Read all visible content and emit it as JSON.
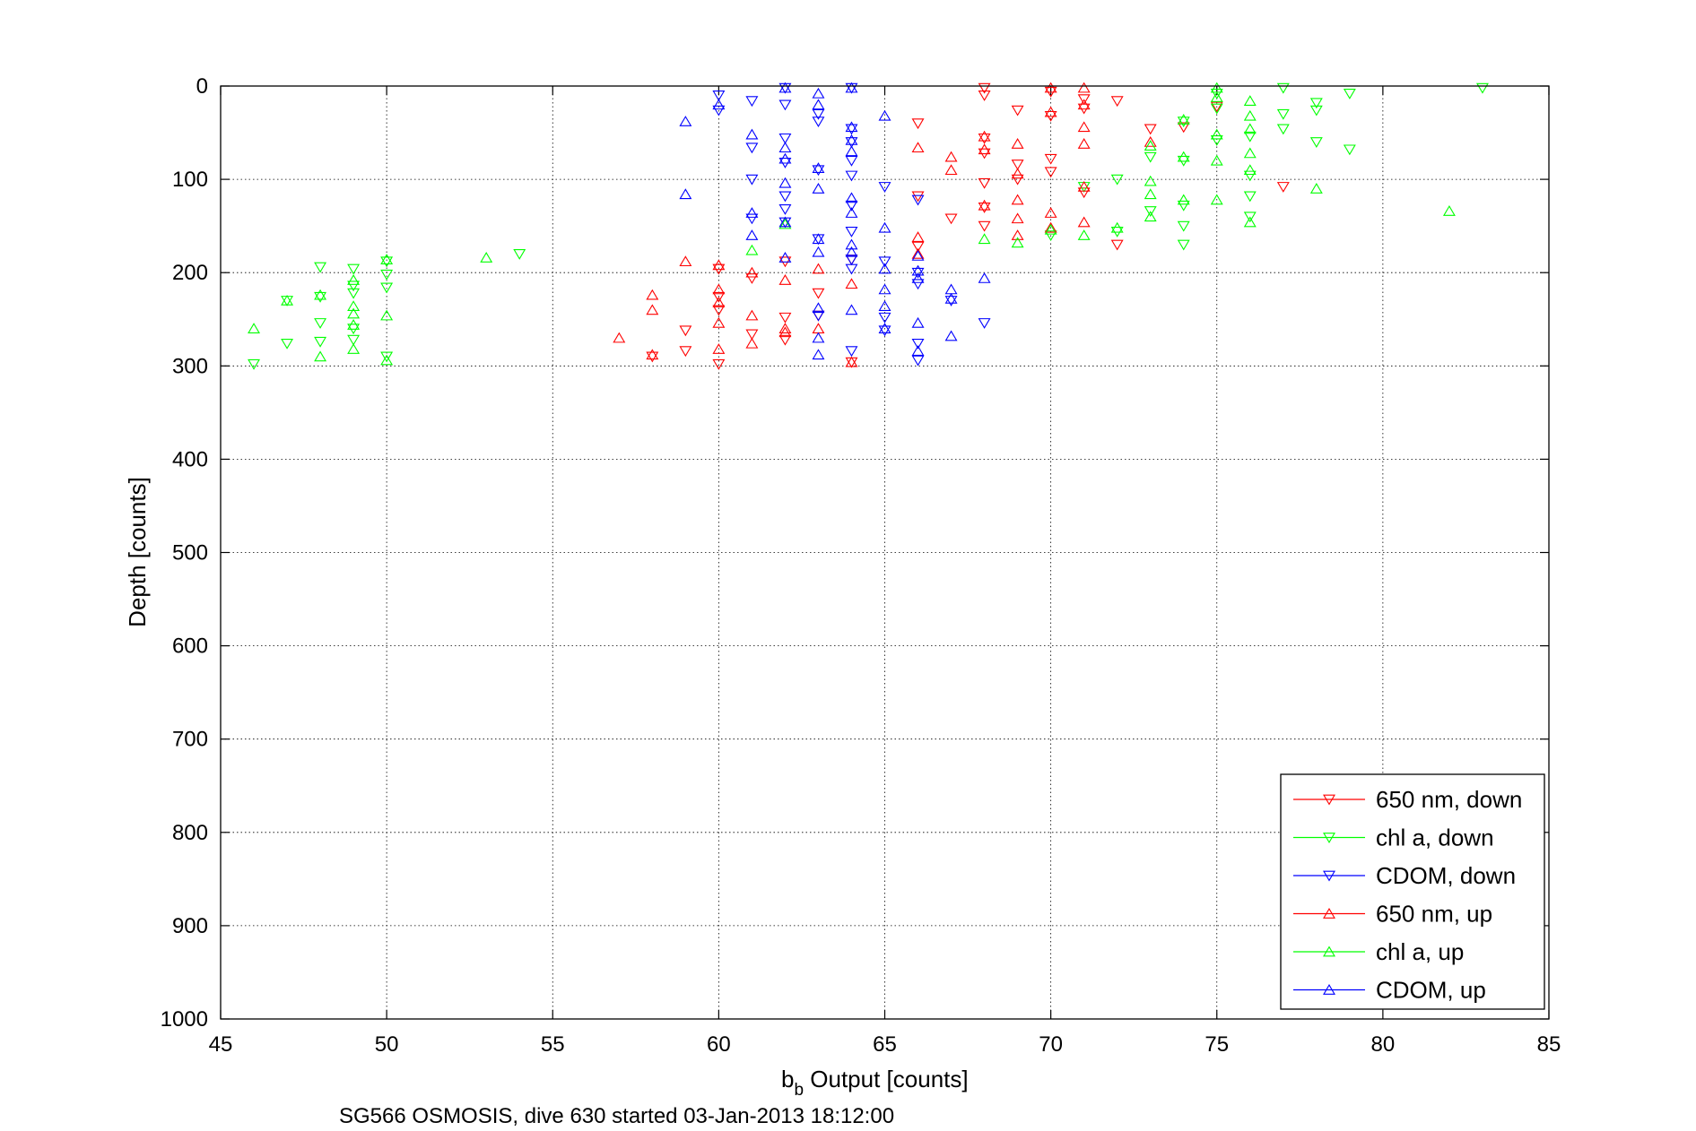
{
  "chart_data": {
    "type": "scatter",
    "title": "",
    "xlabel_main": "b",
    "xlabel_sub": "b",
    "xlabel_rest": " Output [counts]",
    "ylabel": "Depth [counts]",
    "caption": "SG566 OSMOSIS, dive 630 started 03-Jan-2013 18:12:00",
    "xlim": [
      45,
      85
    ],
    "ylim": [
      0,
      1000
    ],
    "y_reversed": true,
    "grid": true,
    "legend_position": "bottom-right",
    "x_ticks": [
      "45",
      "50",
      "55",
      "60",
      "65",
      "70",
      "75",
      "80",
      "85"
    ],
    "y_ticks": [
      "0",
      "100",
      "200",
      "300",
      "400",
      "500",
      "600",
      "700",
      "800",
      "900",
      "1000"
    ],
    "x_tick_values": [
      45,
      50,
      55,
      60,
      65,
      70,
      75,
      80,
      85
    ],
    "y_tick_values": [
      0,
      100,
      200,
      300,
      400,
      500,
      600,
      700,
      800,
      900,
      1000
    ],
    "series": [
      {
        "name": "650 nm, down",
        "color": "#ff0000",
        "marker": "triangle-down",
        "points": [
          [
            58,
            290
          ],
          [
            59,
            262
          ],
          [
            59,
            284
          ],
          [
            60,
            298
          ],
          [
            60,
            240
          ],
          [
            60,
            226
          ],
          [
            60,
            196
          ],
          [
            61,
            206
          ],
          [
            61,
            266
          ],
          [
            62,
            188
          ],
          [
            62,
            248
          ],
          [
            62,
            272
          ],
          [
            63,
            222
          ],
          [
            63,
            246
          ],
          [
            64,
            296
          ],
          [
            64,
            186
          ],
          [
            66,
            40
          ],
          [
            66,
            172
          ],
          [
            66,
            118
          ],
          [
            67,
            142
          ],
          [
            68,
            2
          ],
          [
            68,
            10
          ],
          [
            68,
            56
          ],
          [
            68,
            72
          ],
          [
            68,
            104
          ],
          [
            68,
            130
          ],
          [
            68,
            150
          ],
          [
            69,
            26
          ],
          [
            69,
            84
          ],
          [
            69,
            100
          ],
          [
            70,
            6
          ],
          [
            70,
            32
          ],
          [
            70,
            78
          ],
          [
            70,
            92
          ],
          [
            71,
            14
          ],
          [
            71,
            24
          ],
          [
            71,
            114
          ],
          [
            72,
            16
          ],
          [
            72,
            170
          ],
          [
            73,
            46
          ],
          [
            74,
            44
          ],
          [
            75,
            22
          ],
          [
            77,
            108
          ]
        ]
      },
      {
        "name": "chl a, down",
        "color": "#00ff00",
        "marker": "triangle-down",
        "points": [
          [
            46,
            298
          ],
          [
            47,
            230
          ],
          [
            47,
            276
          ],
          [
            48,
            194
          ],
          [
            48,
            226
          ],
          [
            48,
            254
          ],
          [
            48,
            274
          ],
          [
            49,
            196
          ],
          [
            49,
            214
          ],
          [
            49,
            222
          ],
          [
            49,
            260
          ],
          [
            49,
            272
          ],
          [
            50,
            188
          ],
          [
            50,
            202
          ],
          [
            50,
            216
          ],
          [
            50,
            290
          ],
          [
            54,
            180
          ],
          [
            70,
            160
          ],
          [
            71,
            108
          ],
          [
            72,
            100
          ],
          [
            72,
            156
          ],
          [
            73,
            76
          ],
          [
            73,
            134
          ],
          [
            74,
            38
          ],
          [
            74,
            80
          ],
          [
            74,
            128
          ],
          [
            74,
            150
          ],
          [
            74,
            170
          ],
          [
            75,
            8
          ],
          [
            75,
            24
          ],
          [
            75,
            58
          ],
          [
            76,
            54
          ],
          [
            76,
            96
          ],
          [
            76,
            118
          ],
          [
            76,
            140
          ],
          [
            77,
            2
          ],
          [
            77,
            30
          ],
          [
            77,
            46
          ],
          [
            78,
            18
          ],
          [
            78,
            26
          ],
          [
            78,
            60
          ],
          [
            79,
            8
          ],
          [
            79,
            68
          ],
          [
            83,
            2
          ]
        ]
      },
      {
        "name": "CDOM, down",
        "color": "#0000ff",
        "marker": "triangle-down",
        "points": [
          [
            60,
            10
          ],
          [
            60,
            26
          ],
          [
            61,
            16
          ],
          [
            61,
            66
          ],
          [
            61,
            100
          ],
          [
            61,
            142
          ],
          [
            62,
            2
          ],
          [
            62,
            20
          ],
          [
            62,
            56
          ],
          [
            62,
            82
          ],
          [
            62,
            118
          ],
          [
            62,
            132
          ],
          [
            62,
            146
          ],
          [
            63,
            30
          ],
          [
            63,
            38
          ],
          [
            63,
            90
          ],
          [
            63,
            164
          ],
          [
            63,
            246
          ],
          [
            64,
            2
          ],
          [
            64,
            46
          ],
          [
            64,
            60
          ],
          [
            64,
            80
          ],
          [
            64,
            96
          ],
          [
            64,
            128
          ],
          [
            64,
            156
          ],
          [
            64,
            186
          ],
          [
            64,
            196
          ],
          [
            64,
            284
          ],
          [
            65,
            108
          ],
          [
            65,
            188
          ],
          [
            65,
            248
          ],
          [
            65,
            262
          ],
          [
            66,
            122
          ],
          [
            66,
            200
          ],
          [
            66,
            212
          ],
          [
            66,
            276
          ],
          [
            66,
            294
          ],
          [
            67,
            230
          ],
          [
            68,
            254
          ]
        ]
      },
      {
        "name": "650 nm, up",
        "color": "#ff0000",
        "marker": "triangle-up",
        "points": [
          [
            57,
            270
          ],
          [
            58,
            224
          ],
          [
            58,
            240
          ],
          [
            58,
            288
          ],
          [
            59,
            188
          ],
          [
            60,
            192
          ],
          [
            60,
            218
          ],
          [
            60,
            232
          ],
          [
            60,
            254
          ],
          [
            60,
            282
          ],
          [
            61,
            200
          ],
          [
            61,
            246
          ],
          [
            61,
            276
          ],
          [
            62,
            260
          ],
          [
            62,
            264
          ],
          [
            62,
            208
          ],
          [
            63,
            196
          ],
          [
            63,
            260
          ],
          [
            64,
            212
          ],
          [
            64,
            296
          ],
          [
            66,
            66
          ],
          [
            66,
            162
          ],
          [
            66,
            180
          ],
          [
            67,
            76
          ],
          [
            67,
            90
          ],
          [
            68,
            54
          ],
          [
            68,
            68
          ],
          [
            68,
            128
          ],
          [
            69,
            62
          ],
          [
            69,
            94
          ],
          [
            69,
            122
          ],
          [
            69,
            142
          ],
          [
            69,
            160
          ],
          [
            70,
            2
          ],
          [
            70,
            28
          ],
          [
            70,
            136
          ],
          [
            70,
            152
          ],
          [
            71,
            2
          ],
          [
            71,
            20
          ],
          [
            71,
            44
          ],
          [
            71,
            62
          ],
          [
            71,
            108
          ],
          [
            71,
            146
          ],
          [
            73,
            60
          ]
        ]
      },
      {
        "name": "chl a, up",
        "color": "#00ff00",
        "marker": "triangle-up",
        "points": [
          [
            46,
            260
          ],
          [
            47,
            230
          ],
          [
            48,
            224
          ],
          [
            48,
            290
          ],
          [
            49,
            236
          ],
          [
            49,
            244
          ],
          [
            49,
            256
          ],
          [
            49,
            282
          ],
          [
            49,
            208
          ],
          [
            50,
            186
          ],
          [
            50,
            246
          ],
          [
            50,
            294
          ],
          [
            53,
            184
          ],
          [
            61,
            176
          ],
          [
            62,
            148
          ],
          [
            68,
            164
          ],
          [
            69,
            168
          ],
          [
            70,
            154
          ],
          [
            71,
            160
          ],
          [
            72,
            152
          ],
          [
            73,
            64
          ],
          [
            73,
            102
          ],
          [
            73,
            116
          ],
          [
            73,
            140
          ],
          [
            74,
            36
          ],
          [
            74,
            76
          ],
          [
            74,
            122
          ],
          [
            75,
            2
          ],
          [
            75,
            12
          ],
          [
            75,
            52
          ],
          [
            75,
            80
          ],
          [
            75,
            122
          ],
          [
            76,
            16
          ],
          [
            76,
            32
          ],
          [
            76,
            46
          ],
          [
            76,
            72
          ],
          [
            76,
            90
          ],
          [
            76,
            146
          ],
          [
            78,
            110
          ],
          [
            82,
            134
          ]
        ]
      },
      {
        "name": "CDOM, up",
        "color": "#0000ff",
        "marker": "triangle-up",
        "points": [
          [
            59,
            38
          ],
          [
            59,
            116
          ],
          [
            60,
            20
          ],
          [
            61,
            52
          ],
          [
            61,
            136
          ],
          [
            61,
            160
          ],
          [
            62,
            2
          ],
          [
            62,
            66
          ],
          [
            62,
            78
          ],
          [
            62,
            104
          ],
          [
            62,
            146
          ],
          [
            62,
            184
          ],
          [
            63,
            8
          ],
          [
            63,
            20
          ],
          [
            63,
            88
          ],
          [
            63,
            110
          ],
          [
            63,
            164
          ],
          [
            63,
            178
          ],
          [
            63,
            238
          ],
          [
            63,
            270
          ],
          [
            63,
            288
          ],
          [
            64,
            2
          ],
          [
            64,
            44
          ],
          [
            64,
            58
          ],
          [
            64,
            70
          ],
          [
            64,
            120
          ],
          [
            64,
            136
          ],
          [
            64,
            170
          ],
          [
            64,
            178
          ],
          [
            64,
            240
          ],
          [
            65,
            32
          ],
          [
            65,
            152
          ],
          [
            65,
            196
          ],
          [
            65,
            218
          ],
          [
            65,
            236
          ],
          [
            65,
            260
          ],
          [
            66,
            182
          ],
          [
            66,
            198
          ],
          [
            66,
            206
          ],
          [
            66,
            254
          ],
          [
            66,
            284
          ],
          [
            67,
            218
          ],
          [
            67,
            228
          ],
          [
            67,
            268
          ],
          [
            68,
            206
          ]
        ]
      }
    ]
  }
}
